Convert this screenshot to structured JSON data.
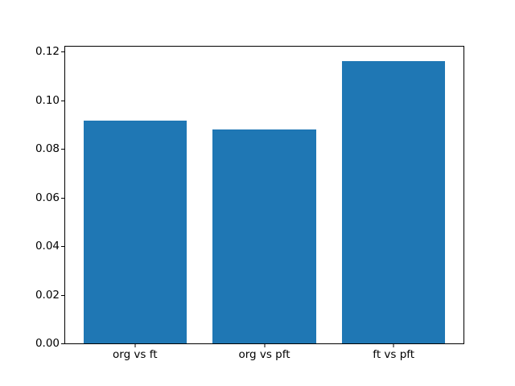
{
  "figure": {
    "background_color": "#ffffff",
    "spine_color": "#000000",
    "tick_label_color": "#000000"
  },
  "chart_data": {
    "type": "bar",
    "title": "",
    "xlabel": "",
    "ylabel": "",
    "categories": [
      "org vs ft",
      "org vs pft",
      "ft vs pft"
    ],
    "values": [
      0.0916,
      0.0879,
      0.1163
    ],
    "bar_color": "#1f77b4",
    "bar_width_fraction": 0.8,
    "ylim": [
      0,
      0.1221
    ],
    "xlim": [
      -0.54,
      2.54
    ],
    "yticks": [
      "0.00",
      "0.02",
      "0.04",
      "0.06",
      "0.08",
      "0.10",
      "0.12"
    ],
    "grid": false,
    "legend": null
  }
}
